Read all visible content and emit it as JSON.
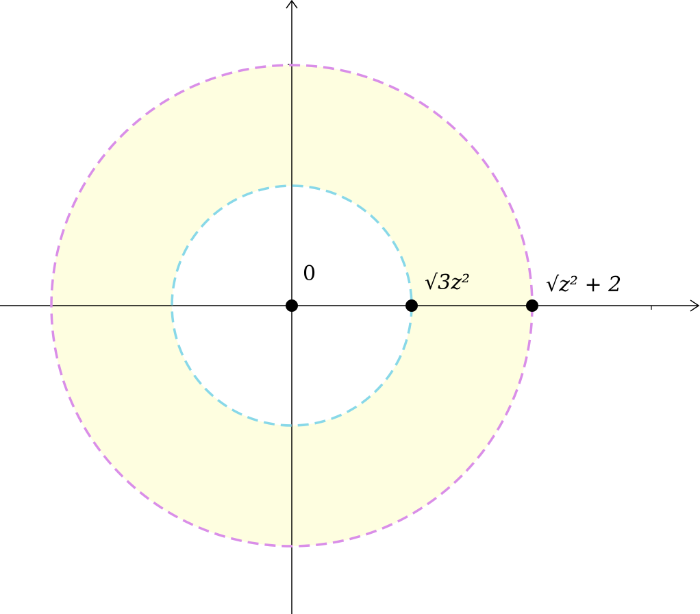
{
  "points": [
    {
      "label": "0"
    },
    {
      "label": "√3z²"
    },
    {
      "label": "√z² + 2"
    }
  ]
}
